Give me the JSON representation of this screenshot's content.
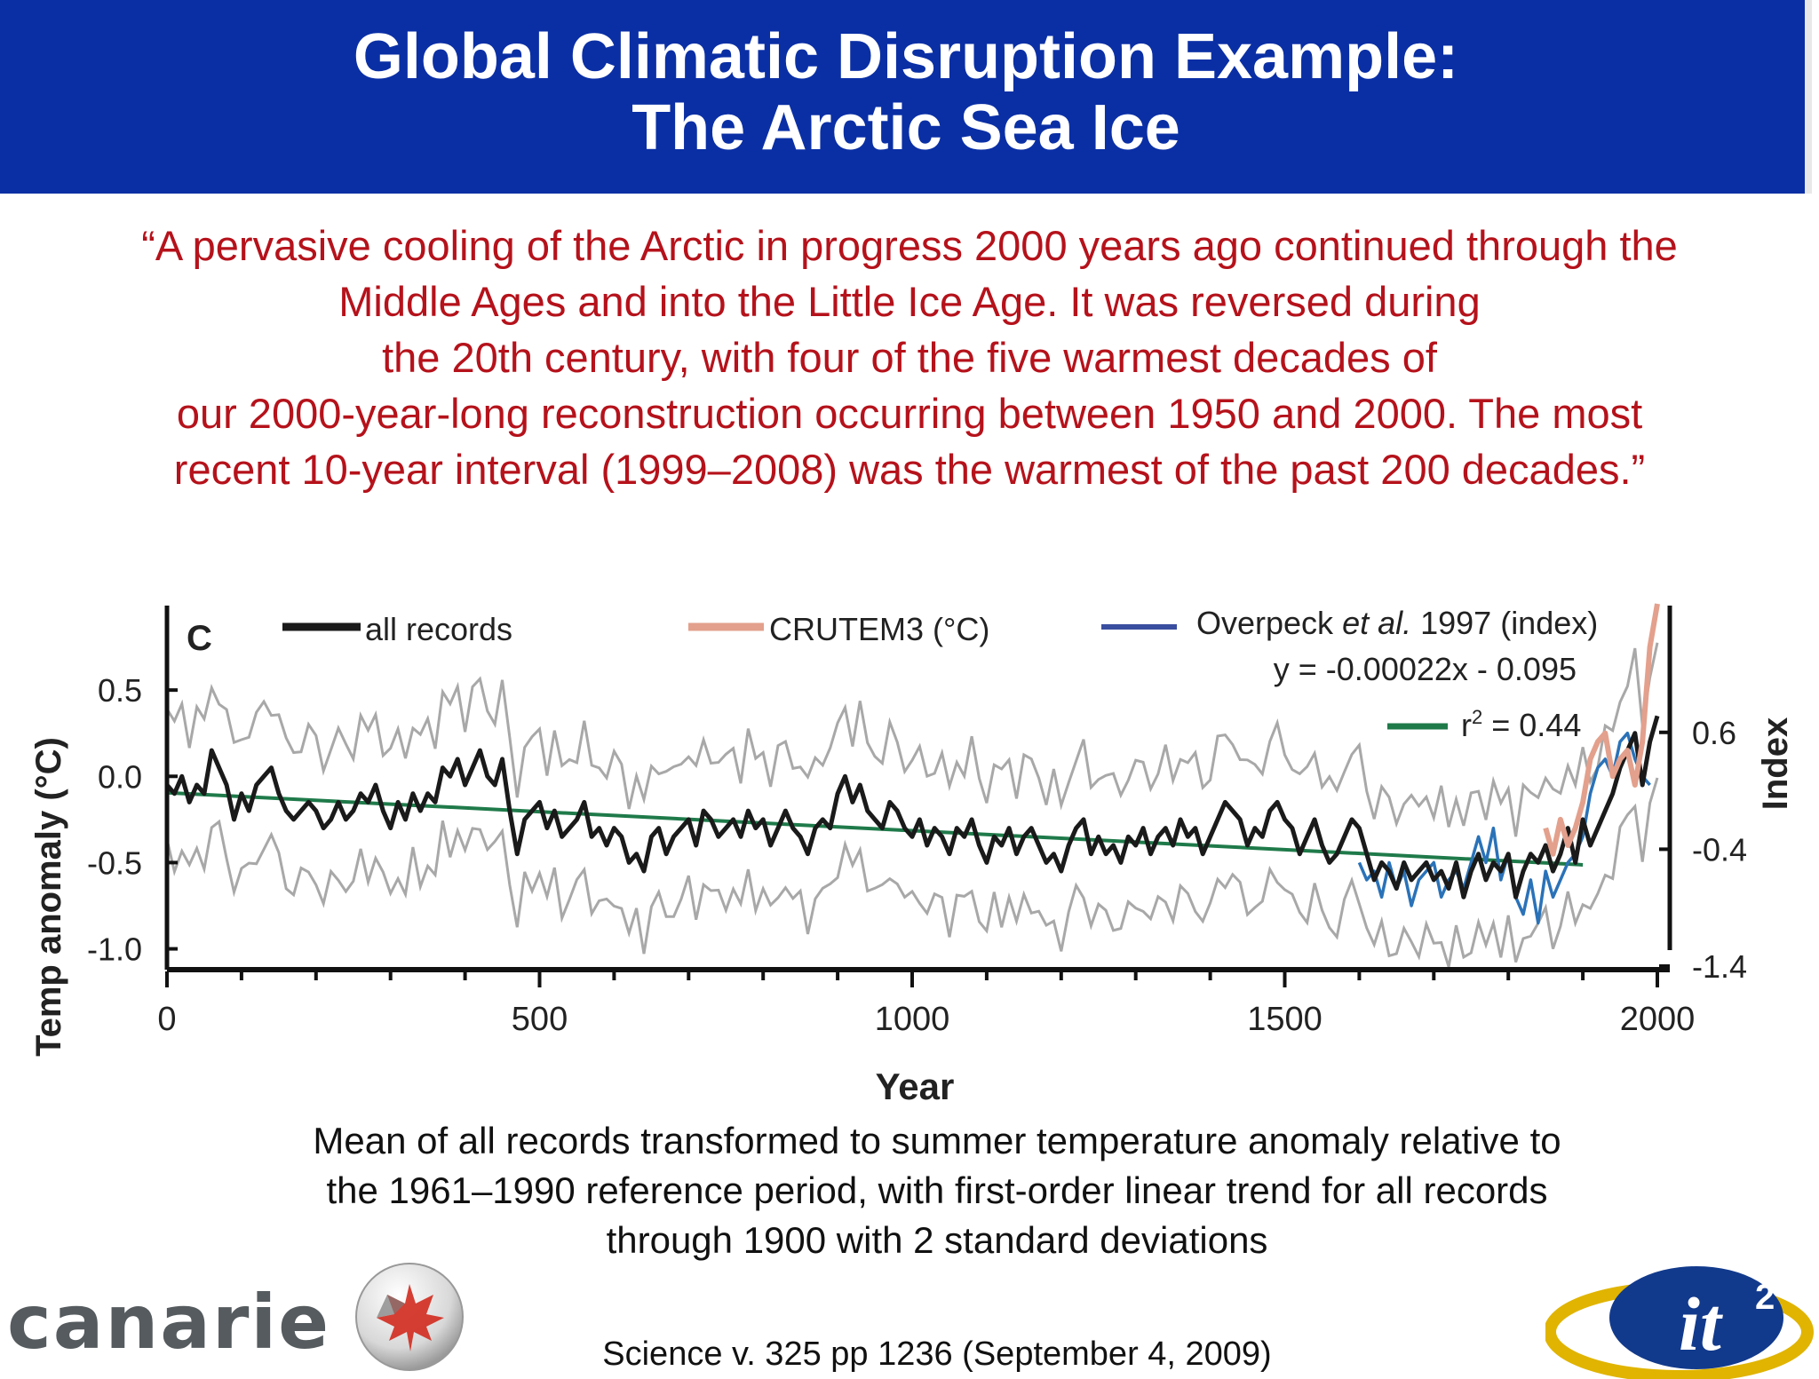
{
  "slide": {
    "title_line1": "Global Climatic Disruption Example:",
    "title_line2": "The Arctic Sea Ice",
    "quote_lines": [
      "“A pervasive cooling of the Arctic in progress 2000 years ago continued through the",
      "Middle Ages and into the Little Ice Age.  It was reversed during",
      "the 20th century, with four of the five warmest decades of",
      "our 2000-year-long reconstruction occurring between 1950 and 2000. The most",
      "recent 10-year interval (1999–2008) was the warmest of the past 200 decades.”"
    ],
    "caption_lines": [
      "Mean of all records transformed to summer temperature anomaly relative to",
      "the 1961–1990 reference period, with first-order linear trend for all records",
      "through 1900 with 2 standard deviations"
    ],
    "citation": "Science v. 325 pp 1236 (September 4, 2009)",
    "logos": {
      "canarie": "canarie",
      "it2": "it",
      "it2_superscript": "2"
    },
    "colors": {
      "header_bg": "#0a2fa5",
      "quote_text": "#b5121b",
      "all_records": "#1a1a1a",
      "crutem3": "#e3a08c",
      "overpeck": "#3a4ea0",
      "trend": "#1f7a4a",
      "band": "#a8a8a8"
    }
  },
  "chart_data": {
    "type": "line",
    "panel_label": "C",
    "xlabel": "Year",
    "ylabel": "Temp anomaly (°C)",
    "y2label": "Index",
    "xlim": [
      0,
      2000
    ],
    "ylim": [
      -1.1,
      1.0
    ],
    "y2lim": [
      -1.4,
      1.7
    ],
    "xticks": [
      0,
      500,
      1000,
      1500,
      2000
    ],
    "yticks": [
      0.5,
      0.0,
      -0.5,
      -1.0
    ],
    "ytick_labels": [
      "0.5",
      "0.0",
      "-0.5",
      "-1.0"
    ],
    "y2ticks": [
      0.6,
      -0.4,
      -1.4
    ],
    "y2tick_labels": [
      "0.6",
      "-0.4",
      "-1.4"
    ],
    "legend": [
      {
        "label": "all records",
        "color": "#1a1a1a"
      },
      {
        "label_pre": "CRUTEM3 (",
        "label_unit": "°C",
        "label_post": ")",
        "color": "#e3a08c"
      },
      {
        "label_pre": "Overpeck ",
        "label_em": "et al.",
        "label_post": " 1997 (index)",
        "color": "#3a4ea0"
      }
    ],
    "equation": "y = -0.00022x - 0.095",
    "r2_label": "r",
    "r2_value": " = 0.44",
    "trend": {
      "x": [
        0,
        1900
      ],
      "y": [
        -0.095,
        -0.513
      ]
    },
    "series": [
      {
        "name": "all records",
        "x": [
          0,
          10,
          20,
          30,
          40,
          50,
          60,
          70,
          80,
          90,
          100,
          110,
          120,
          130,
          140,
          150,
          160,
          170,
          180,
          190,
          200,
          210,
          220,
          230,
          240,
          250,
          260,
          270,
          280,
          290,
          300,
          310,
          320,
          330,
          340,
          350,
          360,
          370,
          380,
          390,
          400,
          410,
          420,
          430,
          440,
          450,
          460,
          470,
          480,
          490,
          500,
          510,
          520,
          530,
          540,
          550,
          560,
          570,
          580,
          590,
          600,
          610,
          620,
          630,
          640,
          650,
          660,
          670,
          680,
          690,
          700,
          710,
          720,
          730,
          740,
          750,
          760,
          770,
          780,
          790,
          800,
          810,
          820,
          830,
          840,
          850,
          860,
          870,
          880,
          890,
          900,
          910,
          920,
          930,
          940,
          950,
          960,
          970,
          980,
          990,
          1000,
          1010,
          1020,
          1030,
          1040,
          1050,
          1060,
          1070,
          1080,
          1090,
          1100,
          1110,
          1120,
          1130,
          1140,
          1150,
          1160,
          1170,
          1180,
          1190,
          1200,
          1210,
          1220,
          1230,
          1240,
          1250,
          1260,
          1270,
          1280,
          1290,
          1300,
          1310,
          1320,
          1330,
          1340,
          1350,
          1360,
          1370,
          1380,
          1390,
          1400,
          1410,
          1420,
          1430,
          1440,
          1450,
          1460,
          1470,
          1480,
          1490,
          1500,
          1510,
          1520,
          1530,
          1540,
          1550,
          1560,
          1570,
          1580,
          1590,
          1600,
          1610,
          1620,
          1630,
          1640,
          1650,
          1660,
          1670,
          1680,
          1690,
          1700,
          1710,
          1720,
          1730,
          1740,
          1750,
          1760,
          1770,
          1780,
          1790,
          1800,
          1810,
          1820,
          1830,
          1840,
          1850,
          1860,
          1870,
          1880,
          1890,
          1900,
          1910,
          1920,
          1930,
          1940,
          1950,
          1960,
          1970,
          1980,
          1990,
          2000
        ],
        "y": [
          -0.05,
          -0.1,
          0.0,
          -0.15,
          -0.05,
          -0.1,
          0.15,
          0.05,
          -0.05,
          -0.25,
          -0.1,
          -0.2,
          -0.05,
          0.0,
          0.05,
          -0.1,
          -0.2,
          -0.25,
          -0.2,
          -0.15,
          -0.2,
          -0.3,
          -0.25,
          -0.15,
          -0.25,
          -0.2,
          -0.1,
          -0.15,
          -0.05,
          -0.2,
          -0.3,
          -0.15,
          -0.25,
          -0.1,
          -0.2,
          -0.1,
          -0.15,
          0.05,
          0.0,
          0.1,
          -0.05,
          0.05,
          0.15,
          0.0,
          -0.05,
          0.1,
          -0.2,
          -0.45,
          -0.25,
          -0.2,
          -0.15,
          -0.3,
          -0.2,
          -0.35,
          -0.3,
          -0.25,
          -0.15,
          -0.35,
          -0.3,
          -0.4,
          -0.3,
          -0.35,
          -0.5,
          -0.45,
          -0.55,
          -0.35,
          -0.3,
          -0.45,
          -0.35,
          -0.3,
          -0.25,
          -0.4,
          -0.2,
          -0.25,
          -0.35,
          -0.3,
          -0.25,
          -0.35,
          -0.2,
          -0.3,
          -0.25,
          -0.4,
          -0.3,
          -0.2,
          -0.3,
          -0.35,
          -0.45,
          -0.3,
          -0.25,
          -0.3,
          -0.1,
          0.0,
          -0.15,
          -0.05,
          -0.2,
          -0.25,
          -0.3,
          -0.15,
          -0.2,
          -0.3,
          -0.35,
          -0.25,
          -0.4,
          -0.3,
          -0.35,
          -0.45,
          -0.3,
          -0.35,
          -0.25,
          -0.4,
          -0.5,
          -0.35,
          -0.4,
          -0.3,
          -0.45,
          -0.35,
          -0.3,
          -0.4,
          -0.5,
          -0.45,
          -0.55,
          -0.4,
          -0.3,
          -0.25,
          -0.45,
          -0.35,
          -0.45,
          -0.4,
          -0.5,
          -0.35,
          -0.4,
          -0.3,
          -0.45,
          -0.35,
          -0.3,
          -0.4,
          -0.25,
          -0.35,
          -0.3,
          -0.45,
          -0.35,
          -0.25,
          -0.15,
          -0.2,
          -0.25,
          -0.4,
          -0.3,
          -0.35,
          -0.2,
          -0.15,
          -0.25,
          -0.3,
          -0.45,
          -0.35,
          -0.25,
          -0.4,
          -0.5,
          -0.45,
          -0.35,
          -0.25,
          -0.3,
          -0.45,
          -0.6,
          -0.5,
          -0.55,
          -0.65,
          -0.5,
          -0.6,
          -0.55,
          -0.5,
          -0.6,
          -0.55,
          -0.65,
          -0.5,
          -0.7,
          -0.55,
          -0.45,
          -0.6,
          -0.5,
          -0.55,
          -0.45,
          -0.7,
          -0.55,
          -0.45,
          -0.5,
          -0.4,
          -0.55,
          -0.45,
          -0.3,
          -0.5,
          -0.25,
          -0.4,
          -0.3,
          -0.2,
          -0.1,
          0.05,
          0.15,
          0.25,
          -0.05,
          0.2,
          0.35
        ]
      },
      {
        "name": "CRUTEM3 (°C)",
        "x": [
          1850,
          1860,
          1870,
          1880,
          1890,
          1900,
          1910,
          1920,
          1930,
          1940,
          1950,
          1960,
          1970,
          1980,
          1990,
          2000
        ],
        "y": [
          -0.3,
          -0.45,
          -0.25,
          -0.4,
          -0.3,
          -0.15,
          0.1,
          0.2,
          0.25,
          0.0,
          0.1,
          0.15,
          -0.05,
          0.2,
          0.75,
          1.0
        ]
      },
      {
        "name": "Overpeck et al. 1997 (index)",
        "x": [
          1600,
          1610,
          1620,
          1630,
          1640,
          1650,
          1660,
          1670,
          1680,
          1690,
          1700,
          1710,
          1720,
          1730,
          1740,
          1750,
          1760,
          1770,
          1780,
          1790,
          1800,
          1810,
          1820,
          1830,
          1840,
          1850,
          1860,
          1870,
          1880,
          1890,
          1900,
          1910,
          1920,
          1930,
          1940,
          1950,
          1960,
          1970,
          1980,
          1990
        ],
        "y": [
          -0.5,
          -0.6,
          -0.55,
          -0.7,
          -0.5,
          -0.65,
          -0.55,
          -0.75,
          -0.6,
          -0.55,
          -0.5,
          -0.7,
          -0.6,
          -0.55,
          -0.65,
          -0.5,
          -0.35,
          -0.5,
          -0.3,
          -0.6,
          -0.45,
          -0.7,
          -0.8,
          -0.6,
          -0.85,
          -0.55,
          -0.7,
          -0.6,
          -0.5,
          -0.45,
          -0.35,
          -0.1,
          0.05,
          0.1,
          0.0,
          0.2,
          0.25,
          0.1,
          0.0,
          -0.05
        ]
      }
    ]
  }
}
